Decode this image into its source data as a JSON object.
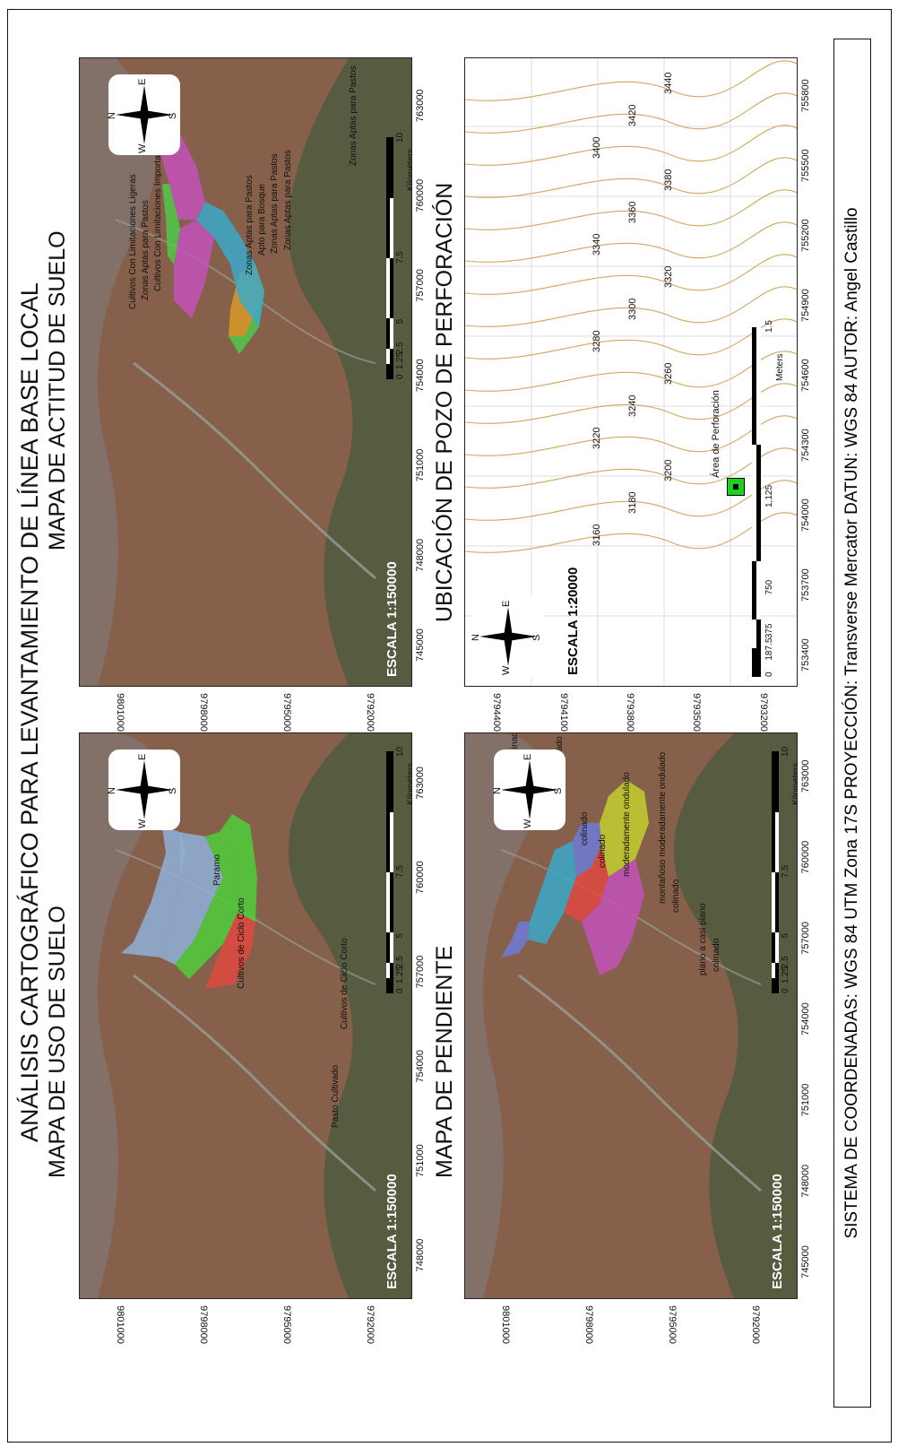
{
  "title": "ANÁLISIS CARTOGRÁFICO PARA LEVANTAMIENTO DE LÍNEA BASE LOCAL",
  "footer": "SISTEMA DE COORDENADAS: WGS 84 UTM Zona 17S PROYECCIÓN: Transverse Mercator DATUN: WGS 84 AUTOR: Angel Castillo",
  "colors": {
    "paramo": "#8fb0d9",
    "cultivos": "#4fce3a",
    "pasto": "#e0493f",
    "pastos": "#4fc94a",
    "bosque": "#c252b9",
    "limit_imp": "#3aa9c9",
    "limit_lig": "#e08a27",
    "colinado": "#6d7bd8",
    "montano": "#c4cf2e",
    "moderado": "#e0493f",
    "plano": "#c252b9",
    "contour": "#d5a460"
  },
  "maps": {
    "uso_suelo": {
      "title": "MAPA DE USO DE SUELO",
      "scale_label": "ESCALA 1:150000",
      "x_ticks": [
        "748000",
        "751000",
        "754000",
        "757000",
        "760000",
        "763000"
      ],
      "y_ticks": [
        "9801000",
        "9798000",
        "9795000",
        "9792000"
      ],
      "legend_labels": [
        "Paramo",
        "Cultivos de Ciclo Corto",
        "Pasto Cultivado",
        "Cultivos de Ciclo Corto"
      ],
      "scalebar": [
        "0",
        "1.25",
        "2.5",
        "5",
        "7.5",
        "10"
      ],
      "scalebar_unit": "Kilometers",
      "north": {
        "n": "N",
        "s": "S",
        "e": "E",
        "w": "W"
      }
    },
    "actitud_suelo": {
      "title": "MAPA DE ACTITUD DE SUELO",
      "scale_label": "ESCALA 1:150000",
      "x_ticks": [
        "745000",
        "748000",
        "751000",
        "754000",
        "757000",
        "760000",
        "763000"
      ],
      "y_ticks": [
        "9801000",
        "9798000",
        "9795000",
        "9792000"
      ],
      "legend_labels": [
        "Zonas Aptas para Pastos",
        "Zonas Aptas para Pastos",
        "Zonas Aptas para Pastos",
        "Apto para Bosque",
        "Zonas Aptas para Pastos",
        "Cultivos Con Limitaciones Importantes",
        "Zonas Aptas para Pastos",
        "Cultivos Con Limitaciones Ligeras"
      ],
      "scalebar": [
        "0",
        "1.25",
        "2.5",
        "5",
        "7.5",
        "10"
      ],
      "scalebar_unit": "Kilometers",
      "north": {
        "n": "N",
        "s": "S",
        "e": "E",
        "w": "W"
      }
    },
    "pendiente": {
      "title": "MAPA DE PENDIENTE",
      "scale_label": "ESCALA 1:150000",
      "x_ticks": [
        "745000",
        "748000",
        "751000",
        "754000",
        "757000",
        "760000",
        "763000"
      ],
      "y_ticks": [
        "9801000",
        "9798000",
        "9795000",
        "9792000"
      ],
      "legend_labels": [
        "colinado",
        "colinado escarpado",
        "colinado",
        "colinado",
        "moderadamente ondulado",
        "montañoso moderadamente ondulado",
        "colinado",
        "plano a casi plano",
        "colinado"
      ],
      "scalebar": [
        "0",
        "1.25",
        "2.5",
        "5",
        "7.5",
        "10"
      ],
      "scalebar_unit": "Kilometers",
      "north": {
        "n": "N",
        "s": "S",
        "e": "E",
        "w": "W"
      }
    },
    "pozo": {
      "title": "UBICACIÓN DE POZO DE PERFORACIÓN",
      "scale_label": "ESCALA 1:20000",
      "x_ticks": [
        "753400",
        "753700",
        "754000",
        "754300",
        "754600",
        "754900",
        "755200",
        "755500",
        "755800"
      ],
      "y_ticks": [
        "9794400",
        "9794100",
        "9793800",
        "9793500",
        "9793200"
      ],
      "contours": [
        "3160",
        "3180",
        "3200",
        "3220",
        "3240",
        "3260",
        "3280",
        "3300",
        "3320",
        "3340",
        "3360",
        "3380",
        "3400",
        "3420",
        "3440"
      ],
      "point_label": "Área de Perforación",
      "scalebar": [
        "0",
        "187.5",
        "375",
        "750",
        "1,125",
        "1.5"
      ],
      "scalebar_unit": "Meters",
      "north": {
        "n": "N",
        "s": "S",
        "e": "E",
        "w": "W"
      }
    }
  }
}
